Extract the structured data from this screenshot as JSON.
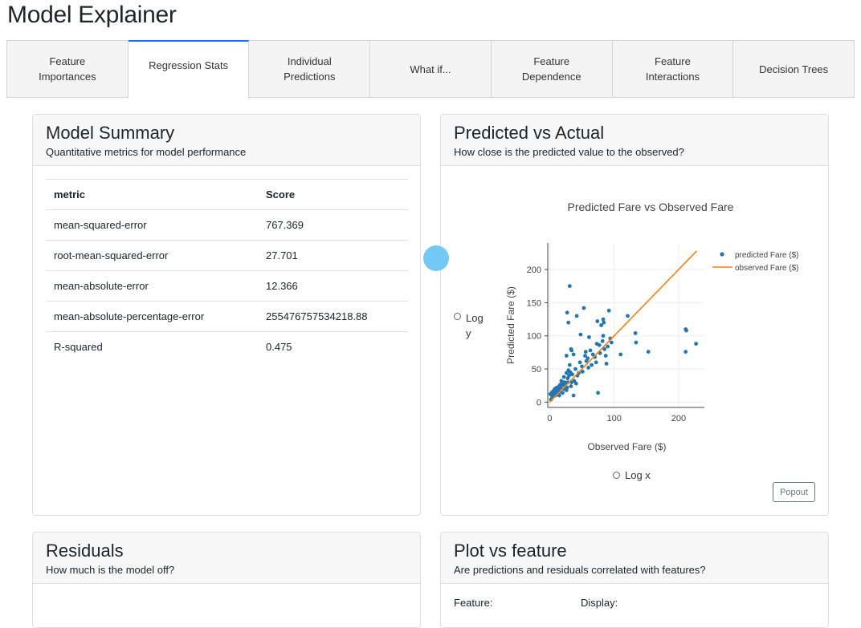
{
  "app": {
    "title": "Model Explainer"
  },
  "tabs": [
    {
      "label": "Feature\nImportances",
      "active": false
    },
    {
      "label": "Regression Stats",
      "active": true
    },
    {
      "label": "Individual\nPredictions",
      "active": false
    },
    {
      "label": "What if...",
      "active": false
    },
    {
      "label": "Feature\nDependence",
      "active": false
    },
    {
      "label": "Feature\nInteractions",
      "active": false
    },
    {
      "label": "Decision Trees",
      "active": false
    }
  ],
  "model_summary": {
    "title": "Model Summary",
    "subtitle": "Quantitative metrics for model performance",
    "columns": [
      "metric",
      "Score"
    ],
    "rows": [
      {
        "metric": "mean-squared-error",
        "score": "767.369"
      },
      {
        "metric": "root-mean-squared-error",
        "score": "27.701"
      },
      {
        "metric": "mean-absolute-error",
        "score": "12.366"
      },
      {
        "metric": "mean-absolute-percentage-error",
        "score": "255476757534218.88"
      },
      {
        "metric": "R-squared",
        "score": "0.475"
      }
    ]
  },
  "pred_vs_actual": {
    "title": "Predicted vs Actual",
    "subtitle": "How close is the predicted value to the observed?",
    "log_y_label": "Log y",
    "log_x_label": "Log x",
    "popout_label": "Popout"
  },
  "residuals": {
    "title": "Residuals",
    "subtitle": "How much is the model off?"
  },
  "plot_vs_feature": {
    "title": "Plot vs feature",
    "subtitle": "Are predictions and residuals correlated with features?",
    "feature_label": "Feature:",
    "display_label": "Display:"
  },
  "colors": {
    "predicted": "#1f77b4",
    "observed": "#ff7f0e",
    "active_tab_accent": "#1975fa"
  },
  "chart_data": {
    "type": "scatter",
    "title": "Predicted Fare vs Observed Fare",
    "xlabel": "Observed Fare ($)",
    "ylabel": "Predicted Fare ($)",
    "xlim": [
      -3,
      240
    ],
    "ylim": [
      -8,
      240
    ],
    "xticks": [
      0,
      100,
      200
    ],
    "yticks": [
      0,
      50,
      100,
      150,
      200
    ],
    "grid": true,
    "legend_position": "top-right",
    "series": [
      {
        "name": "predicted Fare ($)",
        "kind": "markers",
        "points": [
          [
            1,
            12
          ],
          [
            3,
            14
          ],
          [
            5,
            16
          ],
          [
            6,
            10
          ],
          [
            7,
            18
          ],
          [
            8,
            20
          ],
          [
            8,
            12
          ],
          [
            9,
            10
          ],
          [
            10,
            16
          ],
          [
            10,
            20
          ],
          [
            11,
            22
          ],
          [
            12,
            14
          ],
          [
            12,
            18
          ],
          [
            13,
            12
          ],
          [
            14,
            20
          ],
          [
            15,
            24
          ],
          [
            15,
            10
          ],
          [
            16,
            16
          ],
          [
            17,
            22
          ],
          [
            18,
            27
          ],
          [
            20,
            14
          ],
          [
            21,
            26
          ],
          [
            22,
            20
          ],
          [
            23,
            30
          ],
          [
            24,
            26
          ],
          [
            25,
            28
          ],
          [
            26,
            18
          ],
          [
            26,
            44
          ],
          [
            27,
            22
          ],
          [
            28,
            30
          ],
          [
            28,
            36
          ],
          [
            29,
            48
          ],
          [
            30,
            40
          ],
          [
            31,
            56
          ],
          [
            32,
            45
          ],
          [
            33,
            24
          ],
          [
            34,
            30
          ],
          [
            35,
            42
          ],
          [
            37,
            72
          ],
          [
            37,
            10
          ],
          [
            38,
            32
          ],
          [
            40,
            50
          ],
          [
            41,
            28
          ],
          [
            43,
            40
          ],
          [
            45,
            44
          ],
          [
            47,
            60
          ],
          [
            48,
            102
          ],
          [
            50,
            54
          ],
          [
            51,
            46
          ],
          [
            53,
            142
          ],
          [
            55,
            70
          ],
          [
            57,
            62
          ],
          [
            59,
            66
          ],
          [
            60,
            52
          ],
          [
            61,
            98
          ],
          [
            63,
            78
          ],
          [
            65,
            56
          ],
          [
            67,
            72
          ],
          [
            70,
            68
          ],
          [
            72,
            60
          ],
          [
            73,
            88
          ],
          [
            74,
            122
          ],
          [
            75,
            14
          ],
          [
            77,
            86
          ],
          [
            78,
            74
          ],
          [
            80,
            116
          ],
          [
            82,
            92
          ],
          [
            83,
            100
          ],
          [
            85,
            80
          ],
          [
            88,
            58
          ],
          [
            90,
            84
          ],
          [
            92,
            138
          ],
          [
            94,
            96
          ],
          [
            96,
            90
          ],
          [
            110,
            72
          ],
          [
            121,
            130
          ],
          [
            133,
            104
          ],
          [
            134,
            90
          ],
          [
            153,
            76
          ],
          [
            211,
            110
          ],
          [
            212,
            108
          ],
          [
            211,
            76
          ],
          [
            227,
            88
          ],
          [
            31,
            175
          ],
          [
            27,
            135
          ],
          [
            29,
            120
          ],
          [
            42,
            130
          ],
          [
            83,
            125
          ],
          [
            84,
            120
          ],
          [
            87,
            70
          ],
          [
            34,
            78
          ],
          [
            33,
            80
          ],
          [
            26,
            70
          ],
          [
            16,
            26
          ],
          [
            4,
            8
          ],
          [
            2,
            4
          ],
          [
            18,
            32
          ],
          [
            20,
            30
          ],
          [
            22,
            38
          ],
          [
            56,
            76
          ]
        ]
      },
      {
        "name": "observed Fare ($)",
        "kind": "line",
        "points": [
          [
            0,
            0
          ],
          [
            228,
            228
          ]
        ]
      }
    ]
  }
}
